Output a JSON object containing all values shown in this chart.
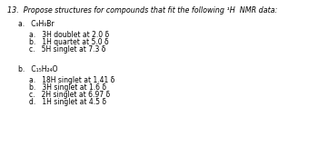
{
  "title": "13.  Propose structures for compounds that fit the following ¹H  NMR data:",
  "section_a_formula": "a.   C₉H₉Br",
  "section_a_items": [
    "a.   3H doublet at 2.0 δ",
    "b.   1H quartet at 5.0 δ",
    "c.   5H singlet at 7.3 δ"
  ],
  "section_b_formula": "b.   C₁₅H₂₄O",
  "section_b_items": [
    "a.   18H singlet at 1.41 δ",
    "b.   3H singlet at 1.6 δ",
    "c.   2H singlet at 6.97 δ",
    "d.   1H singlet at 4.5 δ"
  ],
  "bg_color": "#ffffff",
  "text_color": "#000000",
  "font_size_title": 5.8,
  "font_size_body": 5.5
}
